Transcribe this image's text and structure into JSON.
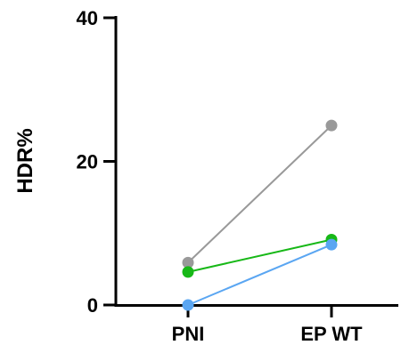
{
  "chart_data": {
    "type": "line",
    "categories": [
      "PNI",
      "EP WT"
    ],
    "ylabel": "HDR%",
    "xlabel": "",
    "ylim": [
      0,
      40
    ],
    "yticks": [
      0,
      20,
      40
    ],
    "grid": false,
    "series": [
      {
        "color": "#999999",
        "values": [
          5.9,
          25.0
        ]
      },
      {
        "color": "#17b817",
        "values": [
          4.6,
          9.1
        ]
      },
      {
        "color": "#5aa6f2",
        "values": [
          0.0,
          8.4
        ]
      }
    ]
  }
}
